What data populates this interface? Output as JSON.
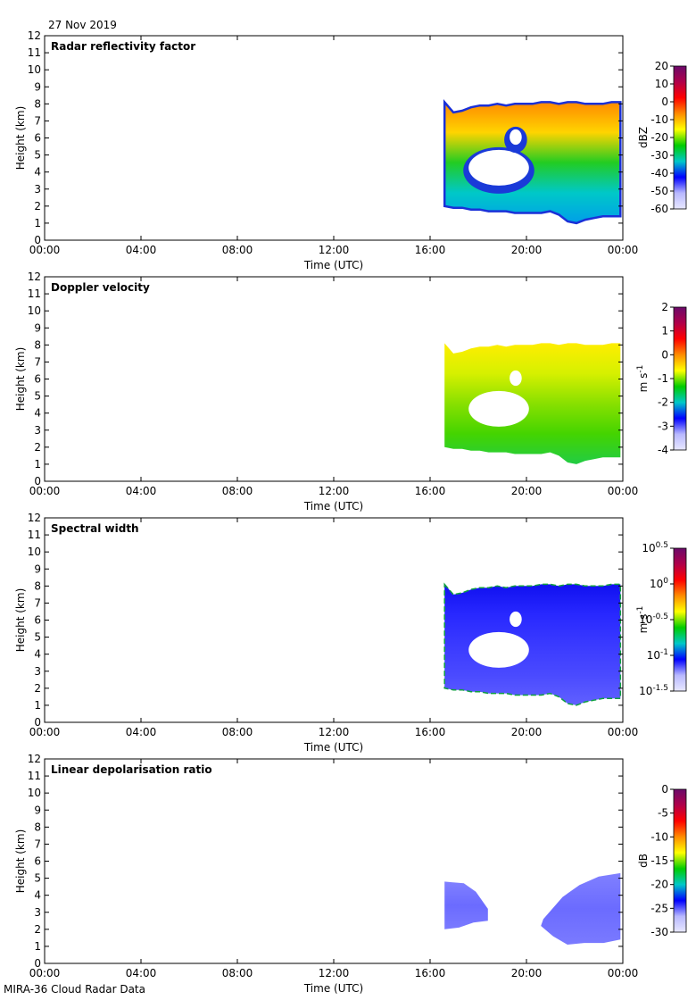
{
  "date": "27 Nov 2019",
  "footer": "MIRA-36 Cloud Radar Data",
  "chart_data": [
    {
      "type": "heatmap",
      "title": "Radar reflectivity factor",
      "xlabel": "Time (UTC)",
      "ylabel": "Height (km)",
      "x_ticks": [
        "00:00",
        "04:00",
        "08:00",
        "12:00",
        "16:00",
        "20:00",
        "00:00"
      ],
      "x_range_hours": [
        0,
        24
      ],
      "y_ticks": [
        0,
        1,
        2,
        3,
        4,
        5,
        6,
        7,
        8,
        9,
        10,
        11,
        12
      ],
      "ylim": [
        0,
        12
      ],
      "colorbar": {
        "unit": "dBZ",
        "unit_parts": [
          "dBZ"
        ],
        "ticks": [
          "20",
          "10",
          "0",
          "-10",
          "-20",
          "-30",
          "-40",
          "-50",
          "-60"
        ],
        "range": [
          -60,
          20
        ]
      },
      "cloud": {
        "start_hour": 16.6,
        "end_hour": 23.9,
        "base_km": [
          2.0,
          1.9,
          1.9,
          1.8,
          1.8,
          1.7,
          1.7,
          1.7,
          1.6,
          1.6,
          1.6,
          1.6,
          1.7,
          1.5,
          1.1,
          1.0,
          1.2,
          1.3,
          1.4,
          1.4,
          1.4
        ],
        "top_km": [
          8.1,
          7.5,
          7.6,
          7.8,
          7.9,
          7.9,
          8.0,
          7.9,
          8.0,
          8.0,
          8.0,
          8.1,
          8.1,
          8.0,
          8.1,
          8.1,
          8.0,
          8.0,
          8.0,
          8.1,
          8.1
        ]
      },
      "gaps": [
        {
          "t": [
            17.6,
            20.1
          ],
          "h": [
            3.2,
            5.3
          ]
        },
        {
          "t": [
            19.3,
            19.8
          ],
          "h": [
            5.6,
            6.5
          ]
        }
      ]
    },
    {
      "type": "heatmap",
      "title": "Doppler velocity",
      "xlabel": "Time (UTC)",
      "ylabel": "Height (km)",
      "x_ticks": [
        "00:00",
        "04:00",
        "08:00",
        "12:00",
        "16:00",
        "20:00",
        "00:00"
      ],
      "x_range_hours": [
        0,
        24
      ],
      "y_ticks": [
        0,
        1,
        2,
        3,
        4,
        5,
        6,
        7,
        8,
        9,
        10,
        11,
        12
      ],
      "ylim": [
        0,
        12
      ],
      "colorbar": {
        "unit": "m s-1",
        "unit_parts": [
          "m s",
          "-1"
        ],
        "ticks": [
          "2",
          "1",
          "0",
          "-1",
          "-2",
          "-3",
          "-4"
        ],
        "range": [
          -4,
          2
        ]
      },
      "cloud": {
        "start_hour": 16.6,
        "end_hour": 23.9,
        "base_km": [
          2.0,
          1.9,
          1.9,
          1.8,
          1.8,
          1.7,
          1.7,
          1.7,
          1.6,
          1.6,
          1.6,
          1.6,
          1.7,
          1.5,
          1.1,
          1.0,
          1.2,
          1.3,
          1.4,
          1.4,
          1.4
        ],
        "top_km": [
          8.1,
          7.5,
          7.6,
          7.8,
          7.9,
          7.9,
          8.0,
          7.9,
          8.0,
          8.0,
          8.0,
          8.1,
          8.1,
          8.0,
          8.1,
          8.1,
          8.0,
          8.0,
          8.0,
          8.1,
          8.1
        ]
      },
      "gaps": [
        {
          "t": [
            17.6,
            20.1
          ],
          "h": [
            3.2,
            5.3
          ]
        },
        {
          "t": [
            19.3,
            19.8
          ],
          "h": [
            5.6,
            6.5
          ]
        }
      ]
    },
    {
      "type": "heatmap",
      "title": "Spectral width",
      "xlabel": "Time (UTC)",
      "ylabel": "Height (km)",
      "x_ticks": [
        "00:00",
        "04:00",
        "08:00",
        "12:00",
        "16:00",
        "20:00",
        "00:00"
      ],
      "x_range_hours": [
        0,
        24
      ],
      "y_ticks": [
        0,
        1,
        2,
        3,
        4,
        5,
        6,
        7,
        8,
        9,
        10,
        11,
        12
      ],
      "ylim": [
        0,
        12
      ],
      "colorbar": {
        "unit": "m s-1",
        "unit_parts": [
          "m s",
          "-1"
        ],
        "ticks": [
          "10^0.5",
          "10^0",
          "10^-0.5",
          "10^-1",
          "10^-1.5"
        ],
        "tick_base": "10",
        "tick_exponents": [
          "0.5",
          "0",
          "-0.5",
          "-1",
          "-1.5"
        ],
        "range": [
          -1.5,
          0.5
        ]
      },
      "cloud": {
        "start_hour": 16.6,
        "end_hour": 23.9,
        "base_km": [
          2.0,
          1.9,
          1.9,
          1.8,
          1.8,
          1.7,
          1.7,
          1.7,
          1.6,
          1.6,
          1.6,
          1.6,
          1.7,
          1.5,
          1.1,
          1.0,
          1.2,
          1.3,
          1.4,
          1.4,
          1.4
        ],
        "top_km": [
          8.1,
          7.5,
          7.6,
          7.8,
          7.9,
          7.9,
          8.0,
          7.9,
          8.0,
          8.0,
          8.0,
          8.1,
          8.1,
          8.0,
          8.1,
          8.1,
          8.0,
          8.0,
          8.0,
          8.1,
          8.1
        ]
      },
      "gaps": [
        {
          "t": [
            17.6,
            20.1
          ],
          "h": [
            3.2,
            5.3
          ]
        },
        {
          "t": [
            19.3,
            19.8
          ],
          "h": [
            5.6,
            6.5
          ]
        }
      ]
    },
    {
      "type": "heatmap",
      "title": "Linear depolarisation ratio",
      "xlabel": "Time (UTC)",
      "ylabel": "Height (km)",
      "x_ticks": [
        "00:00",
        "04:00",
        "08:00",
        "12:00",
        "16:00",
        "20:00",
        "00:00"
      ],
      "x_range_hours": [
        0,
        24
      ],
      "y_ticks": [
        0,
        1,
        2,
        3,
        4,
        5,
        6,
        7,
        8,
        9,
        10,
        11,
        12
      ],
      "ylim": [
        0,
        12
      ],
      "colorbar": {
        "unit": "dB",
        "unit_parts": [
          "dB"
        ],
        "ticks": [
          "0",
          "-5",
          "-10",
          "-15",
          "-20",
          "-25",
          "-30"
        ],
        "range": [
          -30,
          0
        ]
      },
      "ldr_regions": [
        {
          "t": [
            16.6,
            17.4,
            17.9,
            18.4,
            18.4,
            17.8,
            17.2,
            16.6
          ],
          "h": [
            4.8,
            4.7,
            4.2,
            3.2,
            2.5,
            2.4,
            2.1,
            2.0
          ]
        },
        {
          "t": [
            20.7,
            21.5,
            22.2,
            23.0,
            23.9,
            23.9,
            23.2,
            22.4,
            21.7,
            21.1,
            20.6
          ],
          "h": [
            2.6,
            3.9,
            4.6,
            5.1,
            5.3,
            1.4,
            1.2,
            1.2,
            1.1,
            1.6,
            2.2
          ]
        }
      ]
    }
  ]
}
